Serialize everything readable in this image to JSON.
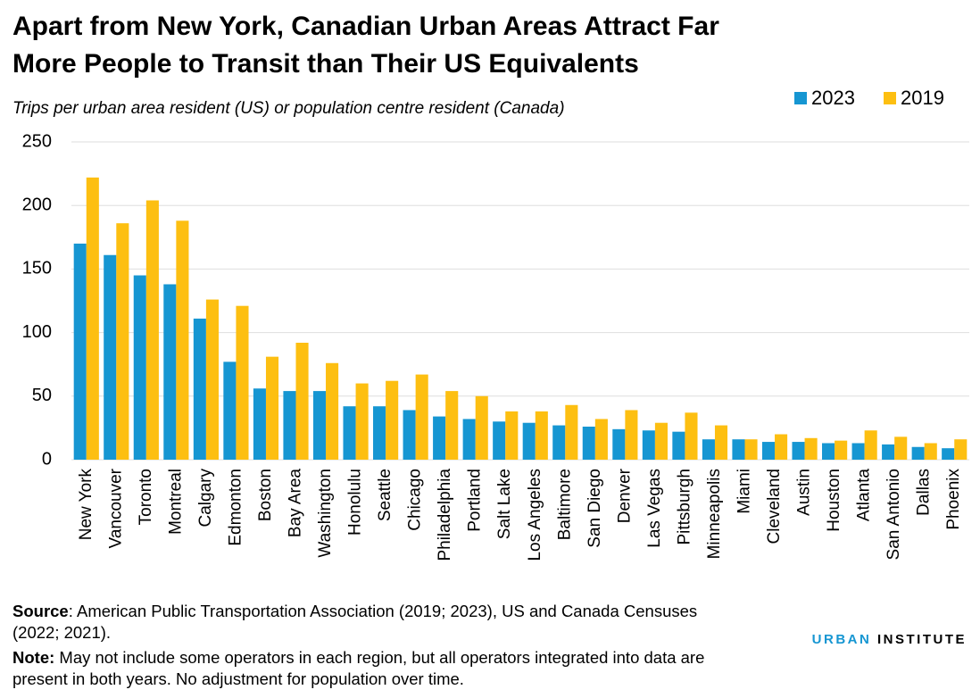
{
  "chart_data": {
    "type": "bar",
    "title": [
      "Apart from New York, Canadian Urban Areas Attract Far",
      "More People to Transit than Their US Equivalents"
    ],
    "subtitle": "Trips per urban area resident (US) or population centre resident (Canada)",
    "categories": [
      "New York",
      "Vancouver",
      "Toronto",
      "Montreal",
      "Calgary",
      "Edmonton",
      "Boston",
      "Bay Area",
      "Washington",
      "Honolulu",
      "Seattle",
      "Chicago",
      "Philadelphia",
      "Portland",
      "Salt Lake",
      "Los Angeles",
      "Baltimore",
      "San Diego",
      "Denver",
      "Las Vegas",
      "Pittsburgh",
      "Minneapolis",
      "Miami",
      "Cleveland",
      "Austin",
      "Houston",
      "Atlanta",
      "San Antonio",
      "Dallas",
      "Phoenix"
    ],
    "series": [
      {
        "name": "2023",
        "color": "#1696d2",
        "values": [
          170,
          161,
          145,
          138,
          111,
          77,
          56,
          54,
          54,
          42,
          42,
          39,
          34,
          32,
          30,
          29,
          27,
          26,
          24,
          23,
          22,
          16,
          16,
          14,
          14,
          13,
          13,
          12,
          10,
          9
        ]
      },
      {
        "name": "2019",
        "color": "#fdbf11",
        "values": [
          222,
          186,
          204,
          188,
          126,
          121,
          81,
          92,
          76,
          60,
          62,
          67,
          54,
          50,
          38,
          38,
          43,
          32,
          39,
          29,
          37,
          27,
          16,
          20,
          17,
          15,
          23,
          18,
          13,
          16
        ]
      }
    ],
    "ylim": [
      0,
      250
    ],
    "yticks": [
      0,
      50,
      100,
      150,
      200,
      250
    ],
    "grid": true,
    "legend": "top-right"
  },
  "footer": {
    "source_label": "Source",
    "source_text": ": American Public Transportation Association (2019; 2023), US and Canada Censuses (2022; 2021).",
    "note_label": "Note:",
    "note_text": " May not include some operators in each region, but all operators integrated into data are present in both years. No adjustment for population over time.",
    "logo_part1": "URBAN",
    "logo_part2": "INSTITUTE"
  }
}
